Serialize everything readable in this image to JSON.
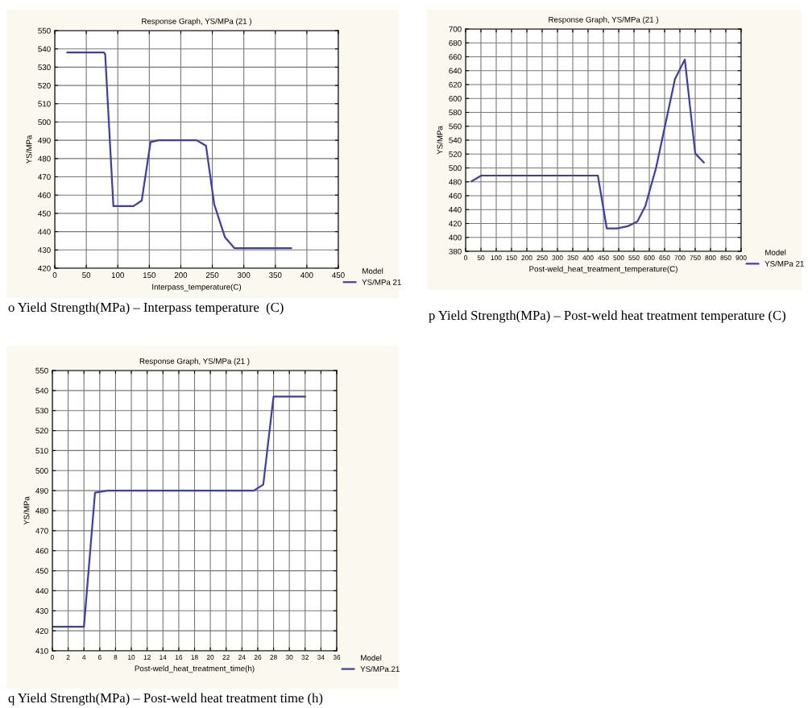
{
  "chart_data": [
    {
      "type": "line",
      "title": "Response Graph, YS/MPa (21 )",
      "xlabel": "Interpass_temperature(C)",
      "ylabel": "YS/MPa",
      "legend_title": "Model",
      "legend": "bottom right",
      "grid": true,
      "marker": "none",
      "line_style": "solid",
      "xlim": [
        0,
        450
      ],
      "xticks": [
        0,
        50,
        100,
        150,
        200,
        250,
        300,
        350,
        400,
        450
      ],
      "ylim": [
        420,
        550
      ],
      "yticks": [
        420,
        430,
        440,
        450,
        460,
        470,
        480,
        490,
        500,
        510,
        520,
        530,
        540,
        550
      ],
      "series": [
        {
          "name": "YS/MPa 21",
          "color": "#3c3cb4",
          "x": [
            20,
            78,
            80,
            93,
            125,
            138,
            152,
            165,
            225,
            240,
            253,
            270,
            285,
            375
          ],
          "values": [
            538,
            538,
            537,
            454,
            454,
            457,
            489,
            490,
            490,
            487,
            455,
            437,
            431,
            431
          ]
        }
      ],
      "annotations": [
        "o Yield Strength(MPa) – Interpass temperature  (C)"
      ]
    },
    {
      "type": "line",
      "title": "Response Graph, YS/MPa (21 )",
      "xlabel": "Post-weld_heat_treatment_temperature(C)",
      "ylabel": "YS/MPa",
      "legend_title": "Model",
      "legend": "bottom right",
      "grid": true,
      "marker": "none",
      "line_style": "solid",
      "xlim": [
        0,
        900
      ],
      "xticks": [
        0,
        50,
        100,
        150,
        200,
        250,
        300,
        350,
        400,
        450,
        500,
        550,
        600,
        650,
        700,
        750,
        800,
        850,
        900
      ],
      "ylim": [
        380,
        700
      ],
      "yticks": [
        380,
        400,
        420,
        440,
        460,
        480,
        500,
        520,
        540,
        560,
        580,
        600,
        620,
        640,
        660,
        680,
        700
      ],
      "series": [
        {
          "name": "YS/MPa 21",
          "color": "#3c3cb4",
          "x": [
            20,
            51,
            432,
            461,
            494,
            529,
            561,
            587,
            622,
            653,
            684,
            716,
            750,
            778
          ],
          "values": [
            481,
            489,
            489,
            413,
            413,
            416,
            423,
            445,
            500,
            564,
            628,
            656,
            521,
            508
          ]
        }
      ],
      "annotations": [
        "p Yield Strength(MPa) – Post-weld heat treatment temperature (C)"
      ]
    },
    {
      "type": "line",
      "title": "Response Graph, YS/MPa (21 )",
      "xlabel": "Post-weld_heat_treatment_time(h)",
      "ylabel": "YS/MPa",
      "legend_title": "Model",
      "legend": "bottom right",
      "grid": true,
      "marker": "none",
      "line_style": "solid",
      "xlim": [
        0,
        36
      ],
      "xticks": [
        0,
        2,
        4,
        6,
        8,
        10,
        12,
        14,
        16,
        18,
        20,
        22,
        24,
        26,
        28,
        30,
        32,
        34,
        36
      ],
      "ylim": [
        410,
        550
      ],
      "yticks": [
        410,
        420,
        430,
        440,
        450,
        460,
        470,
        480,
        490,
        500,
        510,
        520,
        530,
        540,
        550
      ],
      "series": [
        {
          "name": "YS/MPa.21",
          "color": "#3c3cb4",
          "x": [
            0,
            4,
            5.4,
            7,
            25.5,
            26.7,
            28,
            32
          ],
          "values": [
            422,
            422,
            489,
            490,
            490,
            493,
            537,
            537
          ]
        }
      ],
      "annotations": [
        "q Yield Strength(MPa) – Post-weld heat treatment time (h)"
      ]
    }
  ]
}
